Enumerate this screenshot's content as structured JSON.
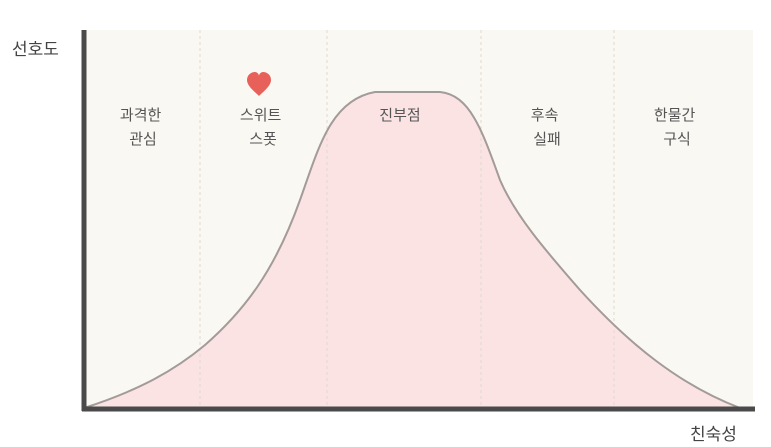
{
  "axes": {
    "y_label": "선호도",
    "x_label": "친숙성"
  },
  "zones": [
    {
      "lines": [
        "과격한",
        "관심"
      ]
    },
    {
      "lines": [
        "스위트",
        "스폿"
      ],
      "marker": "heart-icon"
    },
    {
      "lines": [
        "진부점"
      ]
    },
    {
      "lines": [
        "후속",
        "실패"
      ]
    },
    {
      "lines": [
        "한물간",
        "구식"
      ]
    }
  ],
  "colors": {
    "background": "#faf8f2",
    "curve_fill": "#fbe3e4",
    "curve_stroke": "#a39b98",
    "axis": "#4a4a4a",
    "divider": "#e0d9cf",
    "heart": "#e8605a"
  }
}
